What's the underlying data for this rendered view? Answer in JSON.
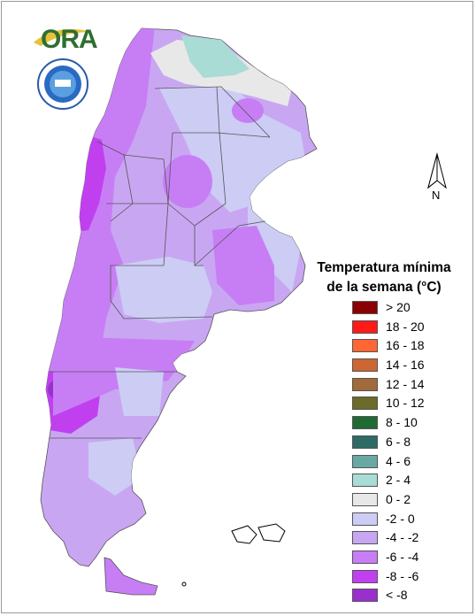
{
  "legend": {
    "title_line1": "Temperatura mínima",
    "title_line2": "de la semana (°C)",
    "items": [
      {
        "label": "> 20",
        "color": "#8b0000"
      },
      {
        "label": "18 - 20",
        "color": "#ff1a1a"
      },
      {
        "label": "16 - 18",
        "color": "#ff6633"
      },
      {
        "label": "14 - 16",
        "color": "#cc6633"
      },
      {
        "label": "12 - 14",
        "color": "#a06a3a"
      },
      {
        "label": "10 - 12",
        "color": "#6b6b2a"
      },
      {
        "label": "8 - 10",
        "color": "#1f6b33"
      },
      {
        "label": "6 - 8",
        "color": "#2f6a66"
      },
      {
        "label": "4 - 6",
        "color": "#6aa8a4"
      },
      {
        "label": "2 - 4",
        "color": "#a8dcd4"
      },
      {
        "label": "0 - 2",
        "color": "#e8e8e8"
      },
      {
        "label": "-2 - 0",
        "color": "#ccccf5"
      },
      {
        "label": "-4 - -2",
        "color": "#c9a6f2"
      },
      {
        "label": "-6 - -4",
        "color": "#c77ef5"
      },
      {
        "label": "-8 - -6",
        "color": "#c040f0"
      },
      {
        "label": "< -8",
        "color": "#9930cc"
      }
    ]
  },
  "north_arrow": {
    "label": "N"
  },
  "logos": {
    "ora_text": "ORA"
  }
}
